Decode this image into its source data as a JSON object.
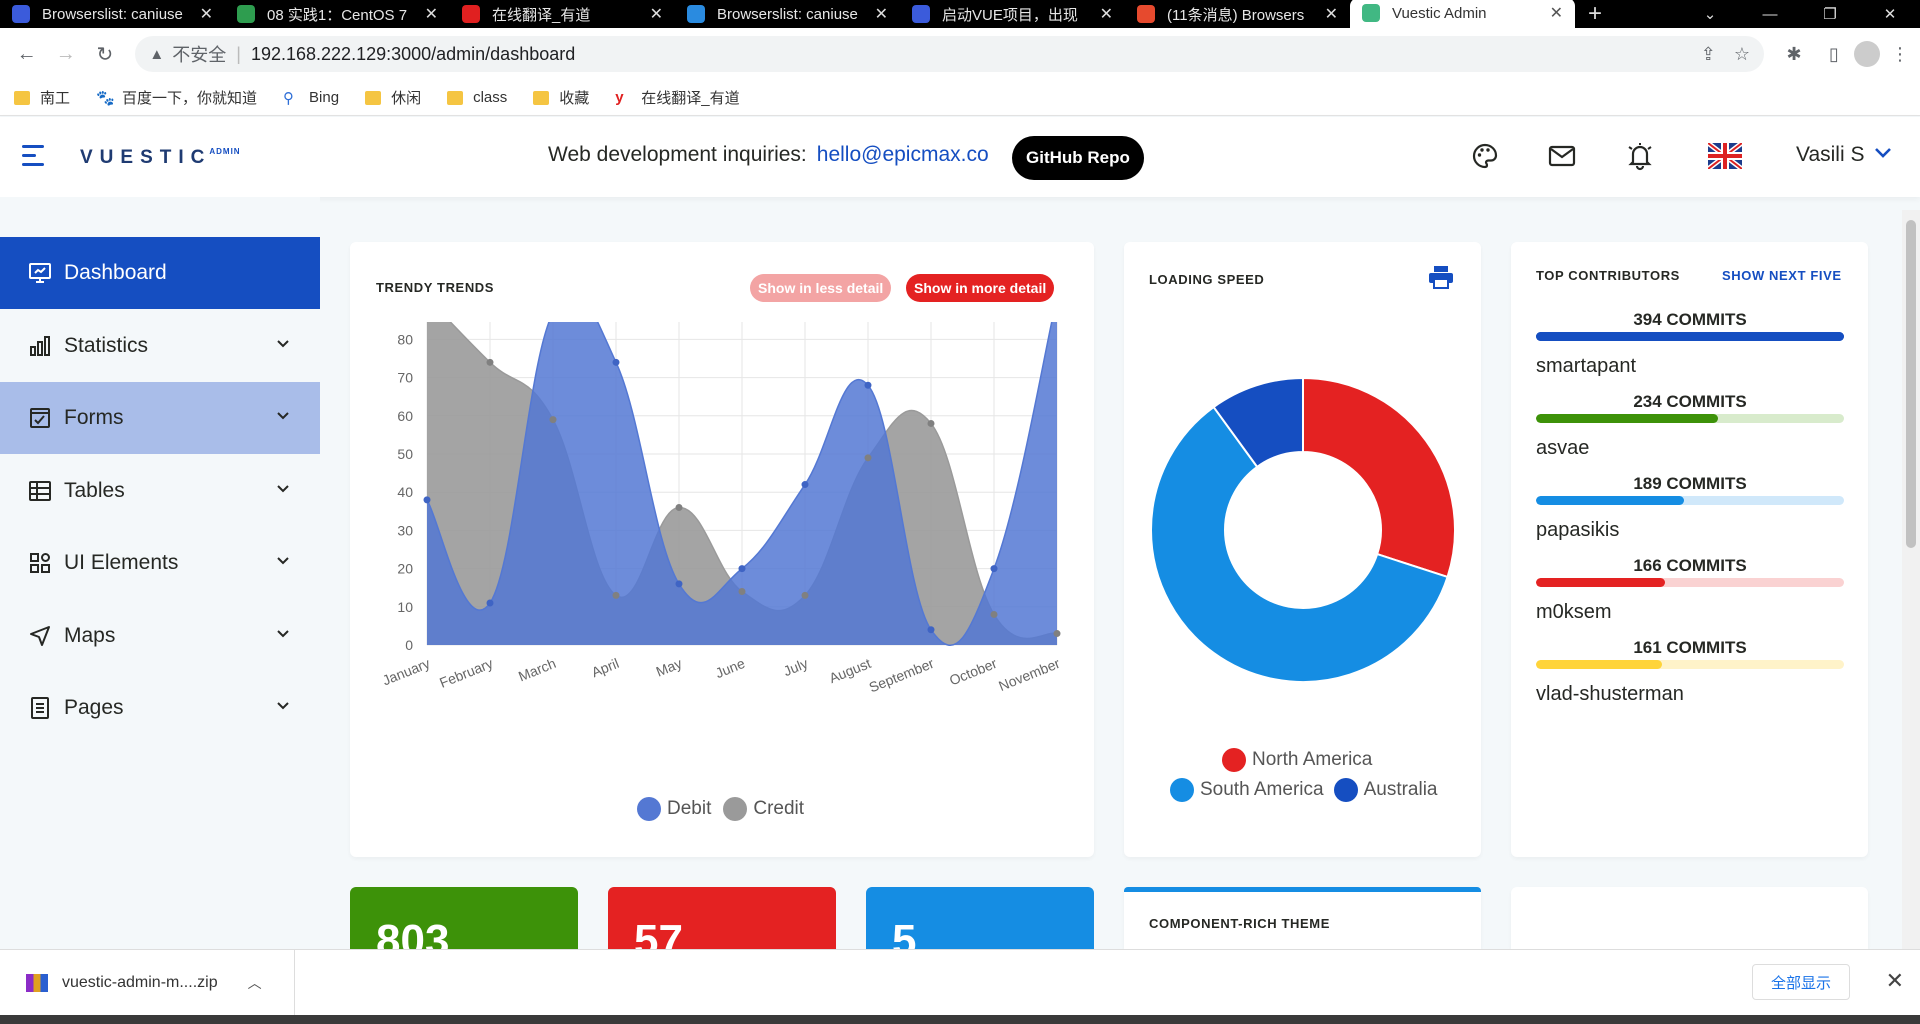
{
  "browser": {
    "tabs": [
      {
        "title": "Browserslist: caniuse",
        "favicon_color": "#3b5bdb",
        "active": false
      },
      {
        "title": "08 实践1：CentOS 7",
        "favicon_color": "#2e9d4f",
        "active": false
      },
      {
        "title": "在线翻译_有道",
        "favicon_color": "#e02020",
        "active": false
      },
      {
        "title": "Browserslist: caniuse",
        "favicon_color": "#2a8be0",
        "active": false
      },
      {
        "title": "启动VUE项目，出现",
        "favicon_color": "#3b5bdb",
        "active": false
      },
      {
        "title": "(11条消息) Browsers",
        "favicon_color": "#e64a2e",
        "active": false
      },
      {
        "title": "Vuestic Admin",
        "favicon_color": "#41b883",
        "active": true
      }
    ],
    "new_tab": "+",
    "security_label": "不安全",
    "url": "192.168.222.129:3000/admin/dashboard",
    "bookmarks": [
      {
        "label": "南工",
        "icon": "folder-icon"
      },
      {
        "label": "百度一下，你就知道",
        "icon": "baidu-paw-icon"
      },
      {
        "label": "Bing",
        "icon": "search-icon"
      },
      {
        "label": "休闲",
        "icon": "folder-icon"
      },
      {
        "label": "class",
        "icon": "folder-icon"
      },
      {
        "label": "收藏",
        "icon": "folder-icon"
      },
      {
        "label": "在线翻译_有道",
        "icon": "youdao-icon"
      }
    ]
  },
  "header": {
    "logo_text": "VUESTIC",
    "logo_sub": "ADMIN",
    "inquiry_label": "Web development inquiries:",
    "inquiry_email": "hello@epicmax.co",
    "github_button": "GitHub Repo",
    "user_name": "Vasili S"
  },
  "sidebar": {
    "items": [
      {
        "label": "Dashboard",
        "icon": "dashboard-icon",
        "state": "active"
      },
      {
        "label": "Statistics",
        "icon": "statistics-icon",
        "state": "normal"
      },
      {
        "label": "Forms",
        "icon": "forms-icon",
        "state": "hover"
      },
      {
        "label": "Tables",
        "icon": "tables-icon",
        "state": "normal"
      },
      {
        "label": "UI Elements",
        "icon": "ui-elements-icon",
        "state": "normal"
      },
      {
        "label": "Maps",
        "icon": "maps-icon",
        "state": "normal"
      },
      {
        "label": "Pages",
        "icon": "pages-icon",
        "state": "normal"
      }
    ]
  },
  "trends_card": {
    "title": "TRENDY TRENDS",
    "less_detail": "Show in less detail",
    "more_detail": "Show in more detail"
  },
  "loading_card": {
    "title": "LOADING SPEED"
  },
  "contributors_card": {
    "title": "TOP CONTRIBUTORS",
    "next_link": "SHOW NEXT FIVE",
    "items": [
      {
        "commits": "394 COMMITS",
        "name": "smartapant",
        "fraction": 1.0,
        "color": "#154ec1",
        "track": "#154ec1"
      },
      {
        "commits": "234 COMMITS",
        "name": "asvae",
        "fraction": 0.59,
        "color": "#3d9209",
        "track": "#d8ebcc"
      },
      {
        "commits": "189 COMMITS",
        "name": "papasikis",
        "fraction": 0.48,
        "color": "#158de3",
        "track": "#d0e8fa"
      },
      {
        "commits": "166 COMMITS",
        "name": "m0ksem",
        "fraction": 0.42,
        "color": "#e42222",
        "track": "#fad2d2"
      },
      {
        "commits": "161 COMMITS",
        "name": "vlad-shusterman",
        "fraction": 0.41,
        "color": "#ffd43a",
        "track": "#fff3c9"
      }
    ]
  },
  "stats": [
    {
      "value": "803",
      "color": "#3d9209"
    },
    {
      "value": "57",
      "color": "#e42222"
    },
    {
      "value": "5",
      "color": "#158de3"
    }
  ],
  "rich_theme_card": {
    "title": "COMPONENT-RICH THEME"
  },
  "downloads": {
    "file": "vuestic-admin-m....zip",
    "show_all": "全部显示"
  },
  "chart_data": [
    {
      "type": "area",
      "title": "TRENDY TRENDS",
      "categories": [
        "January",
        "February",
        "March",
        "April",
        "May",
        "June",
        "July",
        "August",
        "September",
        "October",
        "November"
      ],
      "series": [
        {
          "name": "Debit",
          "color": "#5478d3",
          "values": [
            38,
            11,
            87,
            74,
            16,
            20,
            42,
            68,
            4,
            20,
            91
          ]
        },
        {
          "name": "Credit",
          "color": "#9a9a9a",
          "values": [
            91,
            74,
            59,
            13,
            36,
            14,
            13,
            49,
            58,
            8,
            3
          ]
        }
      ],
      "ylim": [
        0,
        100
      ],
      "yticks": [
        0,
        10,
        20,
        30,
        40,
        50,
        60,
        70,
        80,
        90,
        100
      ],
      "grid": true,
      "legend": "bottom"
    },
    {
      "type": "pie",
      "title": "LOADING SPEED",
      "labels": [
        "North America",
        "South America",
        "Australia"
      ],
      "values": [
        30,
        60,
        10
      ],
      "colors": [
        "#e42222",
        "#158de3",
        "#154ec1"
      ],
      "donut": true,
      "legend": "bottom"
    }
  ]
}
